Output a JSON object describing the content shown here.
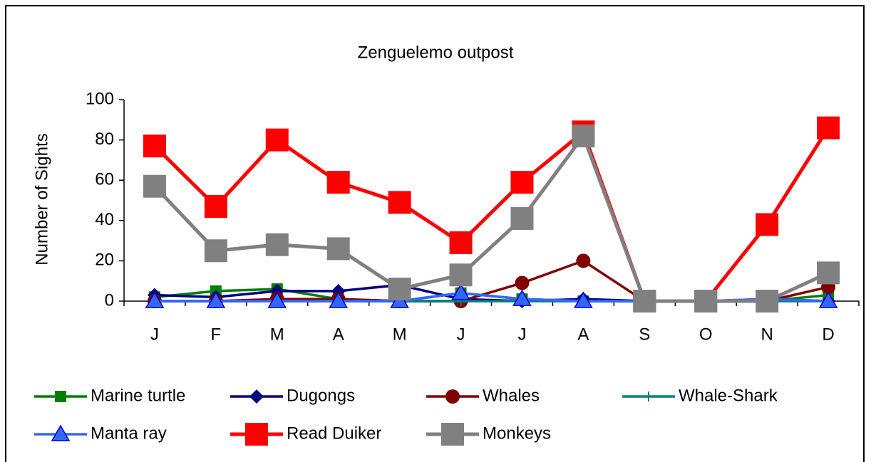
{
  "chart_data": {
    "type": "line",
    "title": "Zenguelemo outpost",
    "y_label": "Number of Sights",
    "categories": [
      "J",
      "F",
      "M",
      "A",
      "M",
      "J",
      "J",
      "A",
      "S",
      "O",
      "N",
      "D"
    ],
    "ylim": [
      0,
      100
    ],
    "yticks": [
      0,
      20,
      40,
      60,
      80,
      100
    ],
    "grid": false,
    "legend": "bottom",
    "series": [
      {
        "name": "Marine turtle",
        "color": "#008000",
        "marker": "square",
        "values": [
          2,
          5,
          6,
          1,
          0,
          4,
          1,
          0,
          0,
          0,
          0,
          3
        ]
      },
      {
        "name": "Dugongs",
        "color": "#000080",
        "marker": "diamond",
        "values": [
          3,
          2,
          5,
          5,
          8,
          1,
          0,
          1,
          0,
          0,
          1,
          0
        ]
      },
      {
        "name": "Whales",
        "color": "#800000",
        "marker": "circle",
        "values": [
          0,
          0,
          1,
          1,
          0,
          0,
          9,
          20,
          0,
          0,
          0,
          7
        ]
      },
      {
        "name": "Whale-Shark",
        "color": "#008080",
        "marker": "plus",
        "values": [
          0,
          0,
          0,
          0,
          0,
          0,
          0,
          0,
          0,
          0,
          0,
          0
        ]
      },
      {
        "name": "Manta ray",
        "color": "#3366ff",
        "marker": "triangle",
        "values": [
          0,
          0,
          0,
          0,
          0,
          4,
          1,
          0,
          0,
          0,
          1,
          0
        ]
      },
      {
        "name": "Read Duiker",
        "color": "#ff0000",
        "marker": "bigsquare",
        "values": [
          77,
          47,
          80,
          59,
          49,
          29,
          59,
          84,
          0,
          0,
          38,
          86
        ]
      },
      {
        "name": "Monkeys",
        "color": "#808080",
        "marker": "bigsquare",
        "values": [
          57,
          25,
          28,
          26,
          6,
          13,
          41,
          82,
          0,
          0,
          0,
          14
        ]
      }
    ]
  }
}
